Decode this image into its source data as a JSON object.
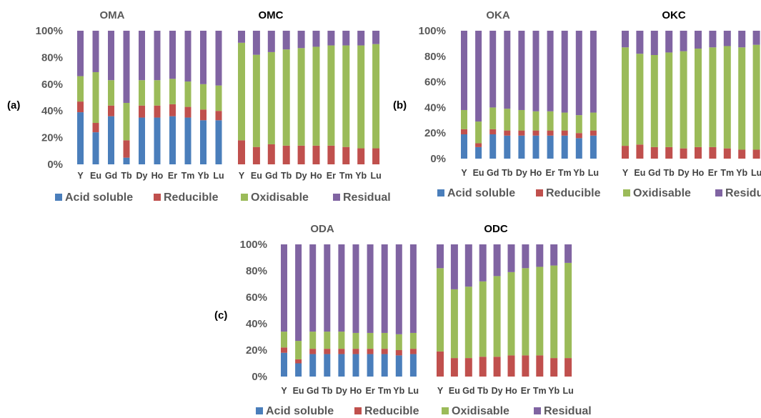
{
  "colors": {
    "Acid soluble": "#4a7ebb",
    "Reducible": "#c0504d",
    "Oxidisable": "#9bbb59",
    "Residual": "#8064a2"
  },
  "chart_data": [
    {
      "type": "bar",
      "stacked": true,
      "panel_label": "(a)",
      "title": "OMA",
      "categories": [
        "Y",
        "Eu",
        "Gd",
        "Tb",
        "Dy",
        "Ho",
        "Er",
        "Tm",
        "Yb",
        "Lu"
      ],
      "ylim": [
        0,
        100
      ],
      "yticks": [
        "0%",
        "20%",
        "40%",
        "60%",
        "80%",
        "100%"
      ],
      "series": [
        {
          "name": "Acid soluble",
          "values": [
            39,
            24,
            36,
            5,
            35,
            35,
            36,
            35,
            33,
            33
          ]
        },
        {
          "name": "Reducible",
          "values": [
            8,
            7,
            8,
            13,
            9,
            9,
            9,
            8,
            8,
            7
          ]
        },
        {
          "name": "Oxidisable",
          "values": [
            19,
            38,
            19,
            28,
            19,
            19,
            19,
            19,
            19,
            19
          ]
        },
        {
          "name": "Residual",
          "values": [
            34,
            31,
            37,
            54,
            37,
            37,
            36,
            38,
            40,
            41
          ]
        }
      ]
    },
    {
      "type": "bar",
      "stacked": true,
      "panel_label": "(a)",
      "title": "OMC",
      "categories": [
        "Y",
        "Eu",
        "Gd",
        "Tb",
        "Dy",
        "Ho",
        "Er",
        "Tm",
        "Yb",
        "Lu"
      ],
      "ylim": [
        0,
        100
      ],
      "series": [
        {
          "name": "Acid soluble",
          "values": [
            0,
            0,
            0,
            0,
            0,
            0,
            0,
            0,
            0,
            0
          ]
        },
        {
          "name": "Reducible",
          "values": [
            18,
            13,
            15,
            14,
            14,
            14,
            14,
            13,
            12,
            12
          ]
        },
        {
          "name": "Oxidisable",
          "values": [
            73,
            69,
            69,
            72,
            73,
            74,
            75,
            76,
            77,
            78
          ]
        },
        {
          "name": "Residual",
          "values": [
            9,
            18,
            16,
            14,
            13,
            12,
            11,
            11,
            11,
            10
          ]
        }
      ]
    },
    {
      "type": "bar",
      "stacked": true,
      "panel_label": "(b)",
      "title": "OKA",
      "categories": [
        "Y",
        "Eu",
        "Gd",
        "Tb",
        "Dy",
        "Ho",
        "Er",
        "Tm",
        "Yb",
        "Lu"
      ],
      "ylim": [
        0,
        100
      ],
      "yticks": [
        "0%",
        "20%",
        "40%",
        "60%",
        "80%",
        "100%"
      ],
      "series": [
        {
          "name": "Acid soluble",
          "values": [
            19,
            9,
            19,
            18,
            18,
            18,
            18,
            18,
            16,
            18
          ]
        },
        {
          "name": "Reducible",
          "values": [
            4,
            3,
            4,
            4,
            4,
            4,
            4,
            4,
            4,
            4
          ]
        },
        {
          "name": "Oxidisable",
          "values": [
            15,
            17,
            17,
            17,
            16,
            15,
            15,
            14,
            14,
            14
          ]
        },
        {
          "name": "Residual",
          "values": [
            62,
            71,
            60,
            61,
            62,
            63,
            63,
            64,
            66,
            64
          ]
        }
      ]
    },
    {
      "type": "bar",
      "stacked": true,
      "panel_label": "(b)",
      "title": "OKC",
      "categories": [
        "Y",
        "Eu",
        "Gd",
        "Tb",
        "Dy",
        "Ho",
        "Er",
        "Tm",
        "Yb",
        "Lu"
      ],
      "ylim": [
        0,
        100
      ],
      "series": [
        {
          "name": "Acid soluble",
          "values": [
            0,
            0,
            0,
            0,
            0,
            0,
            0,
            0,
            0,
            0
          ]
        },
        {
          "name": "Reducible",
          "values": [
            10,
            11,
            9,
            9,
            8,
            9,
            9,
            8,
            7,
            7
          ]
        },
        {
          "name": "Oxidisable",
          "values": [
            77,
            71,
            72,
            74,
            76,
            77,
            78,
            80,
            80,
            82
          ]
        },
        {
          "name": "Residual",
          "values": [
            13,
            18,
            19,
            17,
            16,
            14,
            13,
            12,
            13,
            11
          ]
        }
      ]
    },
    {
      "type": "bar",
      "stacked": true,
      "panel_label": "(c)",
      "title": "ODA",
      "categories": [
        "Y",
        "Eu",
        "Gd",
        "Tb",
        "Dy",
        "Ho",
        "Er",
        "Tm",
        "Yb",
        "Lu"
      ],
      "ylim": [
        0,
        100
      ],
      "yticks": [
        "0%",
        "20%",
        "40%",
        "60%",
        "80%",
        "100%"
      ],
      "series": [
        {
          "name": "Acid soluble",
          "values": [
            18,
            10,
            17,
            17,
            17,
            17,
            17,
            17,
            16,
            17
          ]
        },
        {
          "name": "Reducible",
          "values": [
            4,
            3,
            4,
            4,
            4,
            4,
            4,
            4,
            4,
            4
          ]
        },
        {
          "name": "Oxidisable",
          "values": [
            12,
            14,
            13,
            13,
            13,
            12,
            12,
            12,
            12,
            12
          ]
        },
        {
          "name": "Residual",
          "values": [
            66,
            73,
            66,
            66,
            66,
            67,
            67,
            67,
            68,
            67
          ]
        }
      ]
    },
    {
      "type": "bar",
      "stacked": true,
      "panel_label": "(c)",
      "title": "ODC",
      "categories": [
        "Y",
        "Eu",
        "Gd",
        "Tb",
        "Dy",
        "Ho",
        "Er",
        "Tm",
        "Yb",
        "Lu"
      ],
      "ylim": [
        0,
        100
      ],
      "series": [
        {
          "name": "Acid soluble",
          "values": [
            0,
            0,
            0,
            0,
            0,
            0,
            0,
            0,
            0,
            0
          ]
        },
        {
          "name": "Reducible",
          "values": [
            19,
            14,
            14,
            15,
            15,
            16,
            16,
            16,
            14,
            14
          ]
        },
        {
          "name": "Oxidisable",
          "values": [
            63,
            52,
            54,
            57,
            61,
            63,
            66,
            67,
            70,
            72
          ]
        },
        {
          "name": "Residual",
          "values": [
            18,
            34,
            32,
            28,
            24,
            21,
            18,
            17,
            16,
            14
          ]
        }
      ]
    }
  ],
  "legend": [
    "Acid soluble",
    "Reducible",
    "Oxidisable",
    "Residual"
  ]
}
